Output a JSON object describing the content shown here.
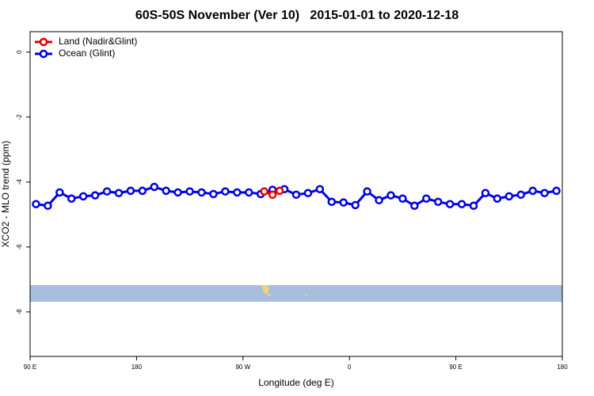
{
  "chart_data": {
    "type": "line",
    "title": "60S-50S November (Ver 10)   2015-01-01 to 2020-12-18",
    "x_label": "Longitude (deg E)",
    "y_label": "XCO2 - MLO trend (ppm)",
    "xlim": [
      90,
      540
    ],
    "ylim": [
      -9.37,
      0.63
    ],
    "xticks": [
      {
        "value": 90,
        "label": "90 E"
      },
      180,
      {
        "value": 270,
        "label": "90 W"
      },
      {
        "value": 360,
        "label": "0"
      },
      {
        "value": 450,
        "label": "90 E"
      },
      {
        "value": 540,
        "label": "180"
      }
    ],
    "yticks": [
      0,
      -2,
      -4,
      -6,
      -8
    ],
    "legend": "top-left",
    "series": [
      {
        "name": "Land (Nadir&Glint)",
        "color": "#e00000",
        "x": [
          288,
          295,
          301
        ],
        "values": [
          -4.29,
          -4.39,
          -4.27
        ]
      },
      {
        "name": "Ocean (Glint)",
        "color": "#0000e6",
        "x": [
          95,
          105,
          115,
          125,
          135,
          145,
          155,
          165,
          175,
          185,
          195,
          205,
          215,
          225,
          235,
          245,
          255,
          265,
          275,
          285,
          295,
          305,
          315,
          325,
          335,
          345,
          355,
          365,
          375,
          385,
          395,
          405,
          415,
          425,
          435,
          445,
          455,
          465,
          475,
          485,
          495,
          505,
          515,
          525,
          535
        ],
        "values": [
          -4.68,
          -4.73,
          -4.32,
          -4.51,
          -4.44,
          -4.41,
          -4.29,
          -4.34,
          -4.27,
          -4.27,
          -4.15,
          -4.27,
          -4.32,
          -4.29,
          -4.32,
          -4.37,
          -4.29,
          -4.32,
          -4.32,
          -4.37,
          -4.24,
          -4.22,
          -4.39,
          -4.34,
          -4.22,
          -4.61,
          -4.63,
          -4.71,
          -4.29,
          -4.56,
          -4.41,
          -4.51,
          -4.73,
          -4.51,
          -4.61,
          -4.68,
          -4.68,
          -4.73,
          -4.34,
          -4.51,
          -4.44,
          -4.39,
          -4.27,
          -4.34,
          -4.27
        ]
      }
    ]
  }
}
